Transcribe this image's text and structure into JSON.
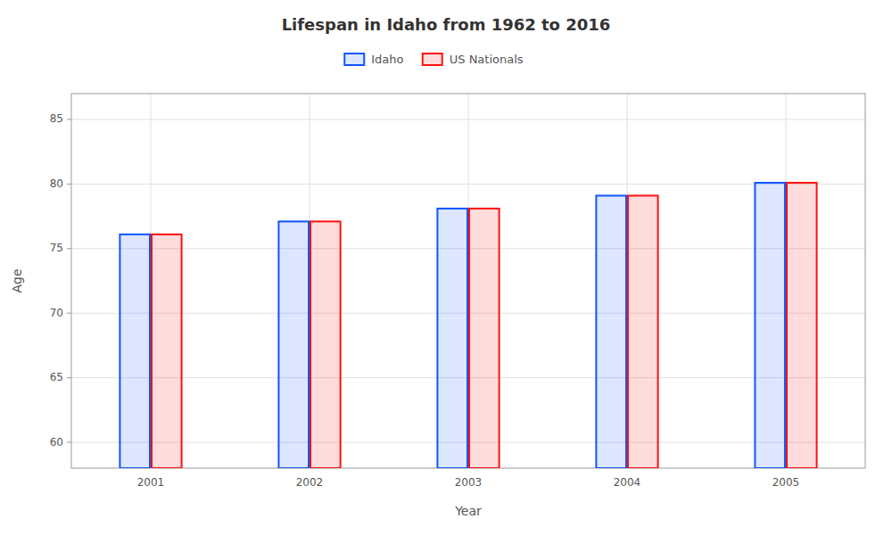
{
  "chart_data": {
    "type": "bar",
    "title": "Lifespan in Idaho from 1962 to 2016",
    "x_label": "Year",
    "y_label": "Age",
    "categories": [
      "2001",
      "2002",
      "2003",
      "2004",
      "2005"
    ],
    "series": [
      {
        "name": "Idaho",
        "color": "#1155ff",
        "values": [
          76.1,
          77.1,
          78.1,
          79.1,
          80.1
        ]
      },
      {
        "name": "US Nationals",
        "color": "#ff1111",
        "values": [
          76.1,
          77.1,
          78.1,
          79.1,
          80.1
        ]
      }
    ],
    "ylim": [
      58,
      87
    ],
    "yticks": [
      60,
      65,
      70,
      75,
      80,
      85
    ],
    "grid": true,
    "legend": "top"
  }
}
